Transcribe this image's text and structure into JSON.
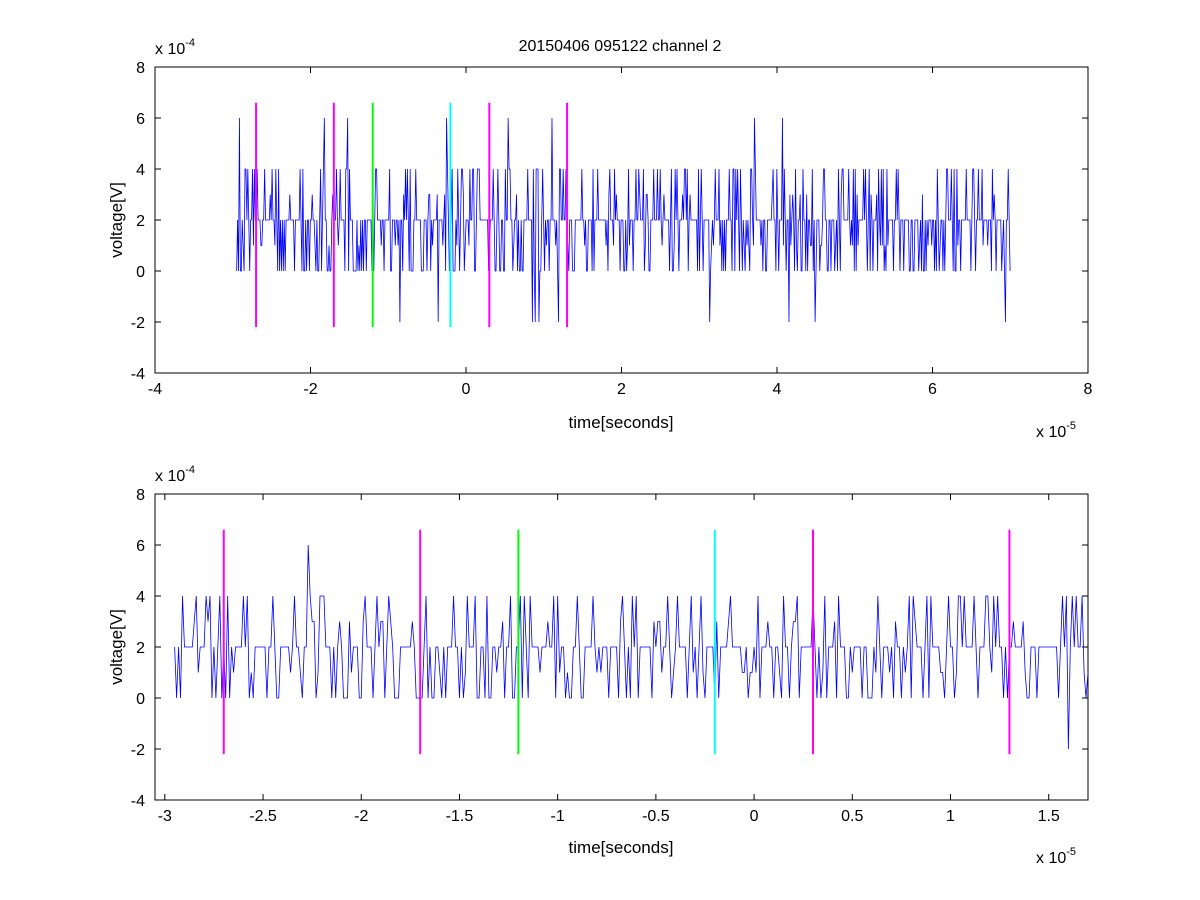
{
  "figure_title": "20150406 095122 channel 2",
  "chart_data": [
    {
      "type": "line",
      "title": "20150406 095122 channel 2",
      "xlabel": "time[seconds]",
      "ylabel": "voltage[V]",
      "x_exponent_label": "x 10",
      "x_exponent": "-5",
      "y_exponent_label": "x 10",
      "y_exponent": "-4",
      "xlim": [
        -4,
        8
      ],
      "ylim": [
        -4,
        8
      ],
      "x_scale_note": "x 10^-5",
      "y_scale_note": "x 10^-4",
      "xticks": [
        -4,
        -2,
        0,
        2,
        4,
        6,
        8
      ],
      "xtick_labels": [
        "-4",
        "-2",
        "0",
        "2",
        "4",
        "6",
        "8"
      ],
      "yticks": [
        -4,
        -2,
        0,
        2,
        4,
        6,
        8
      ],
      "ytick_labels": [
        "-4",
        "-2",
        "0",
        "2",
        "4",
        "6",
        "8"
      ],
      "grid": false,
      "series": [
        {
          "color": "#0000ff",
          "x_range": [
            -2.95,
            7.0
          ],
          "levels": [
            -2,
            0,
            1,
            2,
            4,
            6
          ],
          "note": "dense quantized noise trace sampled every ~0.01e-5 s"
        }
      ],
      "markers": [
        {
          "x": -2.7,
          "y_range": [
            -2.2,
            6.6
          ],
          "color": "#ff00ff"
        },
        {
          "x": -1.7,
          "y_range": [
            -2.2,
            6.6
          ],
          "color": "#ff00ff"
        },
        {
          "x": -1.2,
          "y_range": [
            -2.2,
            6.6
          ],
          "color": "#00ff00"
        },
        {
          "x": -0.2,
          "y_range": [
            -2.2,
            6.6
          ],
          "color": "#00ffff"
        },
        {
          "x": 0.3,
          "y_range": [
            -2.2,
            6.6
          ],
          "color": "#ff00ff"
        },
        {
          "x": 1.3,
          "y_range": [
            -2.2,
            6.6
          ],
          "color": "#ff00ff"
        }
      ]
    },
    {
      "type": "line",
      "title": "",
      "xlabel": "time[seconds]",
      "ylabel": "voltage[V]",
      "x_exponent_label": "x 10",
      "x_exponent": "-5",
      "y_exponent_label": "x 10",
      "y_exponent": "-4",
      "xlim": [
        -3.05,
        1.7
      ],
      "ylim": [
        -4,
        8
      ],
      "xticks": [
        -3,
        -2.5,
        -2,
        -1.5,
        -1,
        -0.5,
        0,
        0.5,
        1,
        1.5
      ],
      "xtick_labels": [
        "-3",
        "-2.5",
        "-2",
        "-1.5",
        "-1",
        "-0.5",
        "0",
        "0.5",
        "1",
        "1.5"
      ],
      "yticks": [
        -4,
        -2,
        0,
        2,
        4,
        6,
        8
      ],
      "ytick_labels": [
        "-4",
        "-2",
        "0",
        "2",
        "4",
        "6",
        "8"
      ],
      "grid": false,
      "series": [
        {
          "color": "#0000ff",
          "x_range": [
            -2.95,
            1.7
          ],
          "levels": [
            -2,
            0,
            1,
            2,
            4,
            6
          ],
          "note": "zoomed view of the same quantized noise trace"
        }
      ],
      "markers": [
        {
          "x": -2.7,
          "y_range": [
            -2.2,
            6.6
          ],
          "color": "#ff00ff"
        },
        {
          "x": -1.7,
          "y_range": [
            -2.2,
            6.6
          ],
          "color": "#ff00ff"
        },
        {
          "x": -1.2,
          "y_range": [
            -2.2,
            6.6
          ],
          "color": "#00ff00"
        },
        {
          "x": -0.2,
          "y_range": [
            -2.2,
            6.6
          ],
          "color": "#00ffff"
        },
        {
          "x": 0.3,
          "y_range": [
            -2.2,
            6.6
          ],
          "color": "#ff00ff"
        },
        {
          "x": 1.3,
          "y_range": [
            -2.2,
            6.6
          ],
          "color": "#ff00ff"
        }
      ]
    }
  ]
}
